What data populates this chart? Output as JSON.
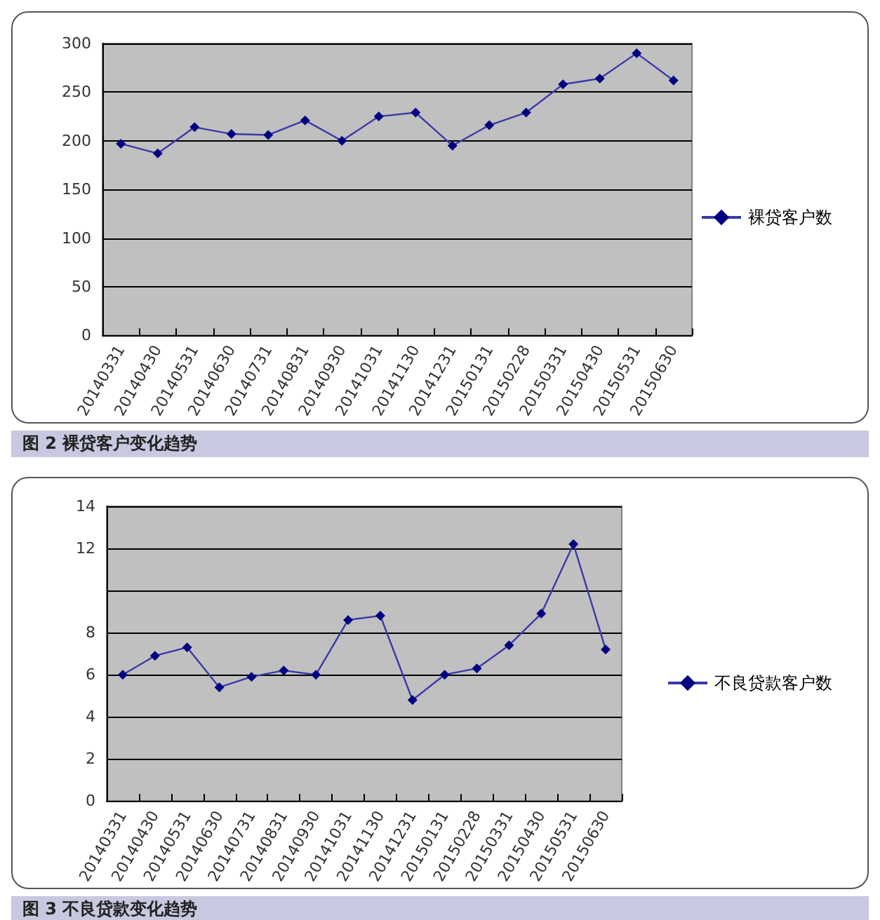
{
  "chart_data": [
    {
      "type": "line",
      "categories": [
        "20140331",
        "20140430",
        "20140531",
        "20140630",
        "20140731",
        "20140831",
        "20140930",
        "20141031",
        "20141130",
        "20141231",
        "20150131",
        "20150228",
        "20150331",
        "20150430",
        "20150531",
        "20150630"
      ],
      "series": [
        {
          "name": "裸贷客户数",
          "color": "#000080",
          "values": [
            197,
            187,
            214,
            207,
            206,
            221,
            200,
            225,
            229,
            195,
            216,
            229,
            258,
            264,
            290,
            262
          ]
        }
      ],
      "ylim": [
        0,
        300
      ],
      "yticks": [
        0,
        50,
        100,
        150,
        200,
        250,
        300
      ],
      "grid": "y",
      "legend": "right",
      "marker": "diamond",
      "annotations": [
        "图 2 裸贷客户变化趋势"
      ]
    },
    {
      "type": "line",
      "categories": [
        "20140331",
        "20140430",
        "20140531",
        "20140630",
        "20140731",
        "20140831",
        "20140930",
        "20141031",
        "20141130",
        "20141231",
        "20150131",
        "20150228",
        "20150331",
        "20150430",
        "20150531",
        "20150630"
      ],
      "series": [
        {
          "name": "不良贷款客户数",
          "color": "#000080",
          "values": [
            6.0,
            6.9,
            7.3,
            5.4,
            5.9,
            6.2,
            6.0,
            8.6,
            8.8,
            4.8,
            6.0,
            6.3,
            7.4,
            8.9,
            12.2,
            7.2
          ]
        }
      ],
      "ylim": [
        0,
        14
      ],
      "yticks": [
        0,
        2,
        4,
        6,
        8,
        {
          "value": 10,
          "label": null
        },
        12,
        14
      ],
      "grid": "y",
      "legend": "right",
      "marker": "diamond",
      "annotations": [
        "图 3 不良贷款变化趋势"
      ]
    }
  ]
}
